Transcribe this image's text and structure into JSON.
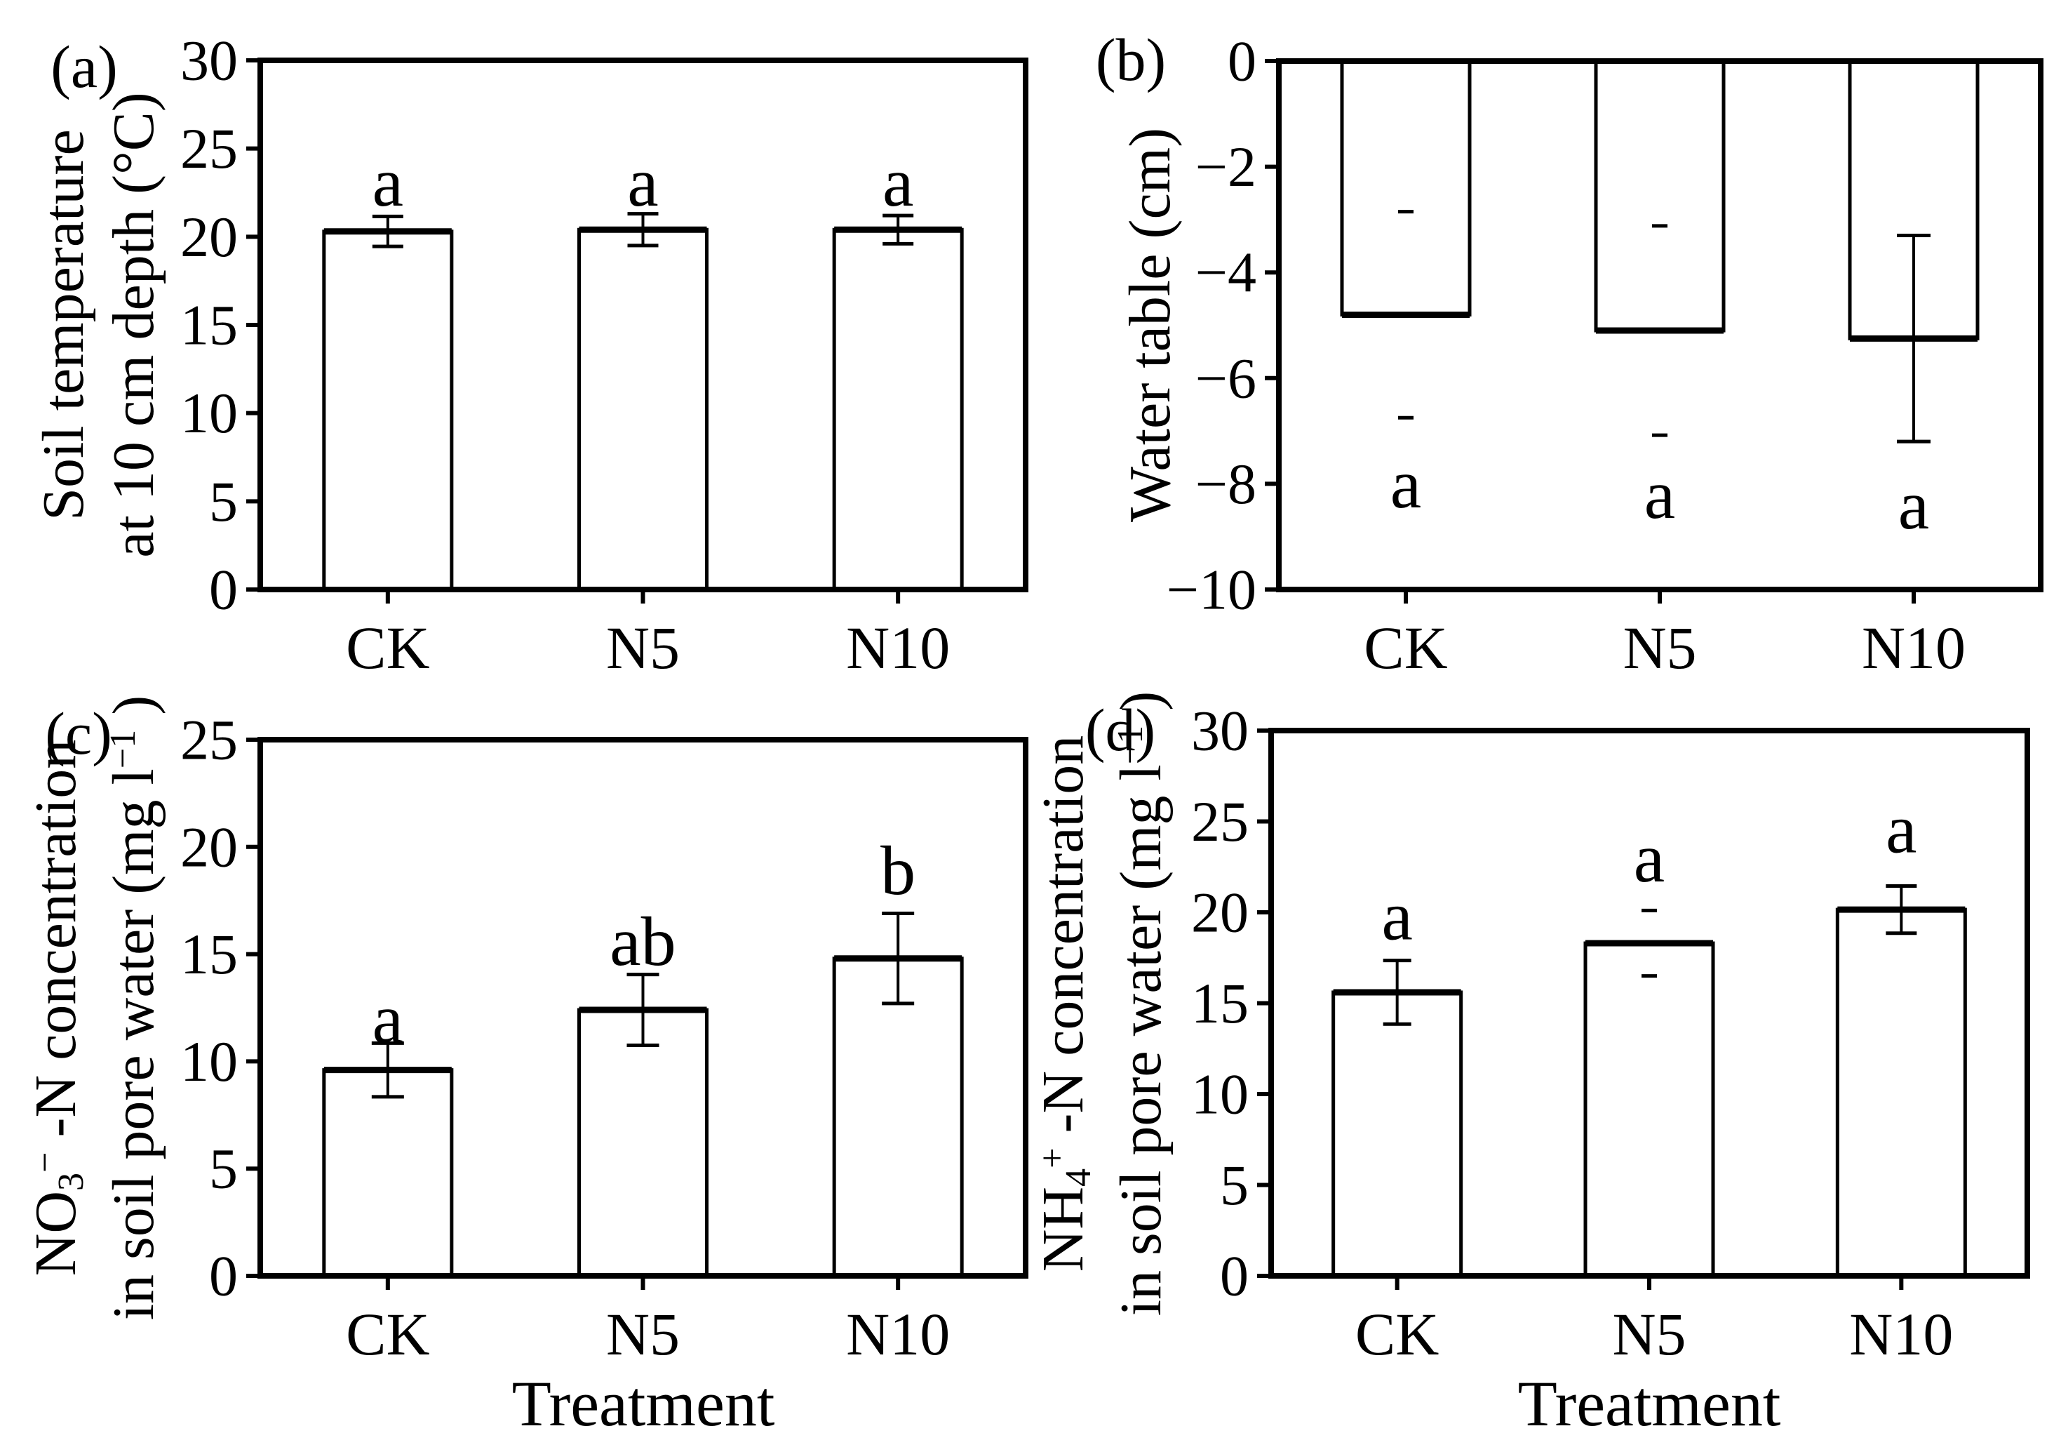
{
  "figure": {
    "background": "#ffffff",
    "text_color": "#000000",
    "bar_fill": "#ffffff",
    "bar_stroke": "#000000"
  },
  "chart_data": [
    {
      "panel": "a",
      "tag": "(a)",
      "type": "bar",
      "ylabel": "Soil temperature at 10 cm depth (°C)",
      "ylabel_lines": [
        [
          {
            "t": "Soil temperature"
          }
        ],
        [
          {
            "t": "at 10 cm depth (°C)"
          }
        ]
      ],
      "xlabel": "",
      "categories": [
        "CK",
        "N5",
        "N10"
      ],
      "values": [
        20.3,
        20.4,
        20.4
      ],
      "errors": [
        0.85,
        0.9,
        0.8
      ],
      "error_styles": [
        "full",
        "full",
        "full"
      ],
      "error_cap_widths": [
        44,
        44,
        44
      ],
      "sig_letters": [
        "a",
        "a",
        "a"
      ],
      "sig_letter_y": [
        23.1,
        23.1,
        23.1
      ],
      "ylim": [
        0,
        30
      ],
      "yticks": [
        0,
        5,
        10,
        15,
        20,
        25,
        30
      ],
      "grid": false,
      "legend": "none"
    },
    {
      "panel": "b",
      "tag": "(b)",
      "type": "bar",
      "ylabel": "Water table (cm)",
      "ylabel_lines": [
        [
          {
            "t": "Water table (cm)"
          }
        ]
      ],
      "xlabel": "",
      "categories": [
        "CK",
        "N5",
        "N10"
      ],
      "values": [
        -4.8,
        -5.1,
        -5.25
      ],
      "errors": [
        1.95,
        1.98,
        1.95
      ],
      "error_styles": [
        "caps",
        "caps",
        "full"
      ],
      "error_cap_widths": [
        22,
        22,
        48
      ],
      "sig_letters": [
        "a",
        "a",
        "a"
      ],
      "sig_letter_y": [
        -8.0,
        -8.2,
        -8.4
      ],
      "ylim": [
        -10,
        0
      ],
      "yticks": [
        0,
        -2,
        -4,
        -6,
        -8,
        -10
      ],
      "grid": false,
      "legend": "none"
    },
    {
      "panel": "c",
      "tag": "(c)",
      "type": "bar",
      "ylabel": "NO3− -N concentration in soil pore water (mg l−1)",
      "ylabel_lines": [
        [
          {
            "t": "NO"
          },
          {
            "t": "3",
            "pos": "sub"
          },
          {
            "t": "−",
            "pos": "sup"
          },
          {
            "t": " -N concentration"
          }
        ],
        [
          {
            "t": "in soil pore water (mg l"
          },
          {
            "t": "−1",
            "pos": "sup"
          },
          {
            "t": " )"
          }
        ]
      ],
      "xlabel": "Treatment",
      "categories": [
        "CK",
        "N5",
        "N10"
      ],
      "values": [
        9.6,
        12.4,
        14.8
      ],
      "errors": [
        1.25,
        1.65,
        2.1
      ],
      "error_styles": [
        "full",
        "full",
        "full"
      ],
      "error_cap_widths": [
        46,
        46,
        46
      ],
      "sig_letters": [
        "a",
        "ab",
        "b"
      ],
      "sig_letter_y": [
        12.0,
        15.6,
        18.9
      ],
      "ylim": [
        0,
        25
      ],
      "yticks": [
        0,
        5,
        10,
        15,
        20,
        25
      ],
      "grid": false,
      "legend": "none"
    },
    {
      "panel": "d",
      "tag": "(d)",
      "type": "bar",
      "ylabel": "NH4+ -N concentration in soil pore water (mg l−1)",
      "ylabel_lines": [
        [
          {
            "t": "NH"
          },
          {
            "t": "4",
            "pos": "sub"
          },
          {
            "t": "+",
            "pos": "sup"
          },
          {
            "t": " -N concentration"
          }
        ],
        [
          {
            "t": "in soil pore water (mg l"
          },
          {
            "t": "−1",
            "pos": "sup"
          },
          {
            "t": " )"
          }
        ]
      ],
      "xlabel": "Treatment",
      "categories": [
        "CK",
        "N5",
        "N10"
      ],
      "values": [
        15.6,
        18.3,
        20.15
      ],
      "errors": [
        1.75,
        1.8,
        1.3
      ],
      "error_styles": [
        "full",
        "caps",
        "full"
      ],
      "error_cap_widths": [
        40,
        22,
        44
      ],
      "sig_letters": [
        "a",
        "a",
        "a"
      ],
      "sig_letter_y": [
        19.8,
        23.0,
        24.6
      ],
      "ylim": [
        0,
        30
      ],
      "yticks": [
        0,
        5,
        10,
        15,
        20,
        25,
        30
      ],
      "grid": false,
      "legend": "none"
    }
  ]
}
